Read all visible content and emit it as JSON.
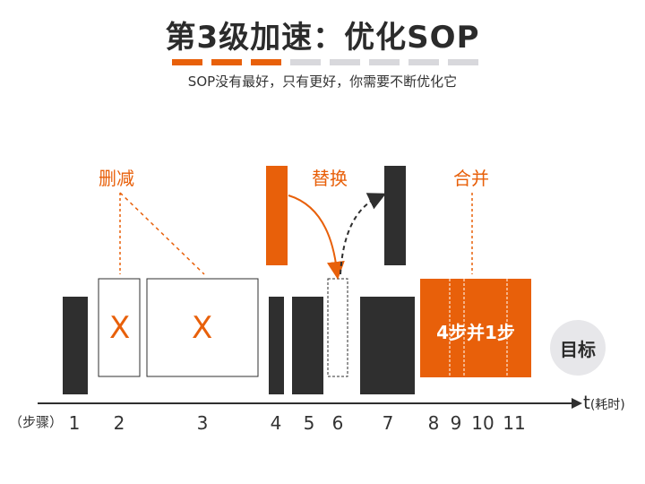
{
  "title": "第3级加速：优化SOP",
  "subtitle": "SOP没有最好，只有更好，你需要不断优化它",
  "progress": {
    "total": 8,
    "completed": 3,
    "colors": {
      "done": "#e8600a",
      "todo": "#d8d8dc"
    }
  },
  "annotations": {
    "delete": "删减",
    "replace": "替换",
    "merge": "合并"
  },
  "step_numbers": [
    "1",
    "2",
    "3",
    "4",
    "5",
    "6",
    "7",
    "8",
    "9",
    "10",
    "11"
  ],
  "axis": {
    "unit_label": "（步骤）",
    "t_label": "t",
    "t_unit": "(耗时)"
  },
  "x_marks": [
    "X",
    "X"
  ],
  "merged_label": "4步并1步",
  "goal_label": "目标",
  "colors": {
    "accent": "#e8600a",
    "dark": "#2f2f2f",
    "goal_bg": "#e7e7ea"
  }
}
